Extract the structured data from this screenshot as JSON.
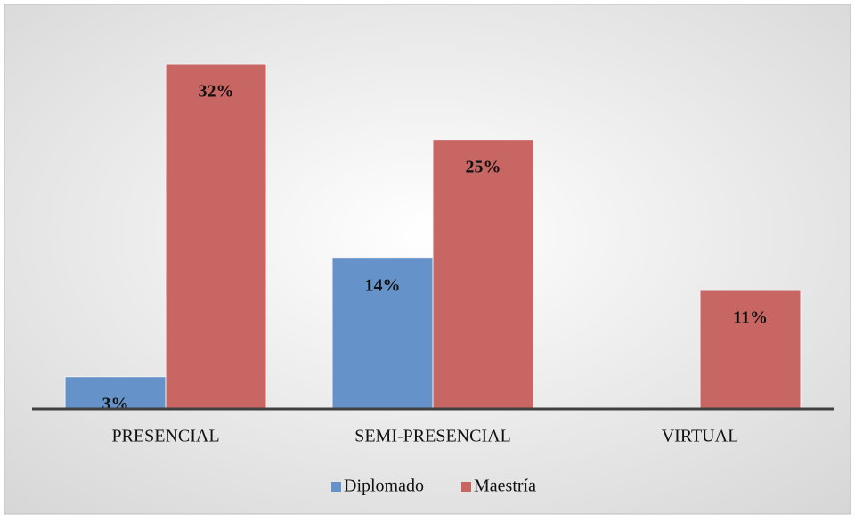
{
  "chart_data": {
    "type": "bar",
    "categories": [
      "PRESENCIAL",
      "SEMI-PRESENCIAL",
      "VIRTUAL"
    ],
    "series": [
      {
        "name": "Diplomado",
        "color": "#6592c8",
        "values": [
          3,
          14,
          null
        ],
        "value_labels": [
          "3%",
          "14%",
          null
        ]
      },
      {
        "name": "Maestría",
        "color": "#c86663",
        "values": [
          32,
          25,
          11
        ],
        "value_labels": [
          "32%",
          "25%",
          "11%"
        ]
      }
    ]
  }
}
